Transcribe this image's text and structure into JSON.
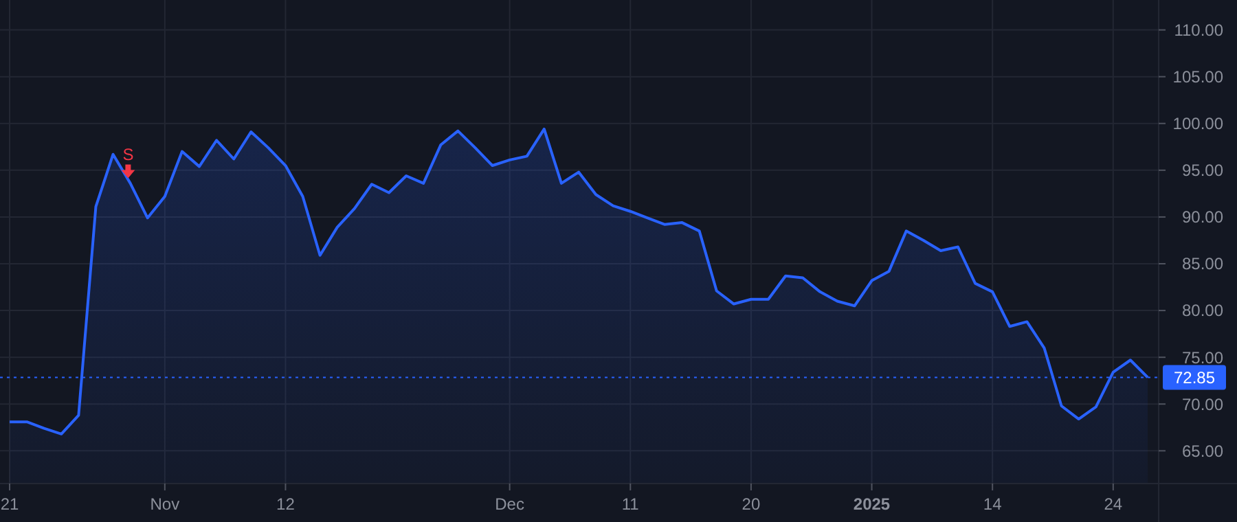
{
  "chart_data": {
    "type": "area",
    "categories": [
      "21",
      null,
      null,
      null,
      null,
      null,
      null,
      null,
      null,
      "Nov",
      null,
      null,
      null,
      null,
      null,
      null,
      "12",
      null,
      null,
      null,
      null,
      null,
      null,
      null,
      null,
      null,
      null,
      null,
      null,
      "Dec",
      null,
      null,
      null,
      null,
      null,
      null,
      "11",
      null,
      null,
      null,
      null,
      null,
      null,
      "20",
      null,
      null,
      null,
      null,
      null,
      null,
      "2025",
      null,
      null,
      null,
      null,
      null,
      null,
      "14",
      null,
      null,
      null,
      null,
      null,
      null,
      "24",
      null,
      null
    ],
    "series": [
      {
        "color": "#2962ff",
        "values": [
          68.1,
          68.1,
          67.4,
          66.8,
          68.8,
          91.1,
          96.7,
          93.6,
          89.9,
          92.2,
          97.0,
          95.4,
          98.2,
          96.2,
          99.1,
          97.4,
          95.5,
          92.2,
          85.9,
          88.9,
          90.9,
          93.5,
          92.6,
          94.4,
          93.6,
          97.7,
          99.2,
          97.4,
          95.5,
          96.1,
          96.5,
          99.4,
          93.6,
          94.8,
          92.4,
          91.2,
          90.6,
          89.9,
          89.2,
          89.4,
          88.5,
          82.1,
          80.7,
          81.2,
          81.2,
          83.7,
          83.5,
          82.0,
          81.0,
          80.5,
          83.2,
          84.2,
          88.5,
          87.5,
          86.4,
          86.8,
          82.9,
          82.0,
          78.3,
          78.8,
          76.0,
          69.8,
          68.4,
          69.7,
          73.4,
          74.7,
          72.85
        ]
      }
    ],
    "ylim": [
      61.5,
      113.2
    ],
    "yticks": [
      {
        "value": 65,
        "label": "65.00"
      },
      {
        "value": 70,
        "label": "70.00"
      },
      {
        "value": 75,
        "label": "75.00"
      },
      {
        "value": 80,
        "label": "80.00"
      },
      {
        "value": 85,
        "label": "85.00"
      },
      {
        "value": 90,
        "label": "90.00"
      },
      {
        "value": 95,
        "label": "95.00"
      },
      {
        "value": 100,
        "label": "100.00"
      },
      {
        "value": 105,
        "label": "105.00"
      },
      {
        "value": 110,
        "label": "110.00"
      }
    ],
    "ref_lines": [
      {
        "axis": "y",
        "value": 72.85,
        "label": "72.85",
        "color": "#2962ff",
        "line_style": "dotted"
      }
    ],
    "annotations": [
      {
        "text": "S",
        "y": 94.0
      }
    ],
    "grid": true,
    "line_style": "solid",
    "marker": "none"
  }
}
